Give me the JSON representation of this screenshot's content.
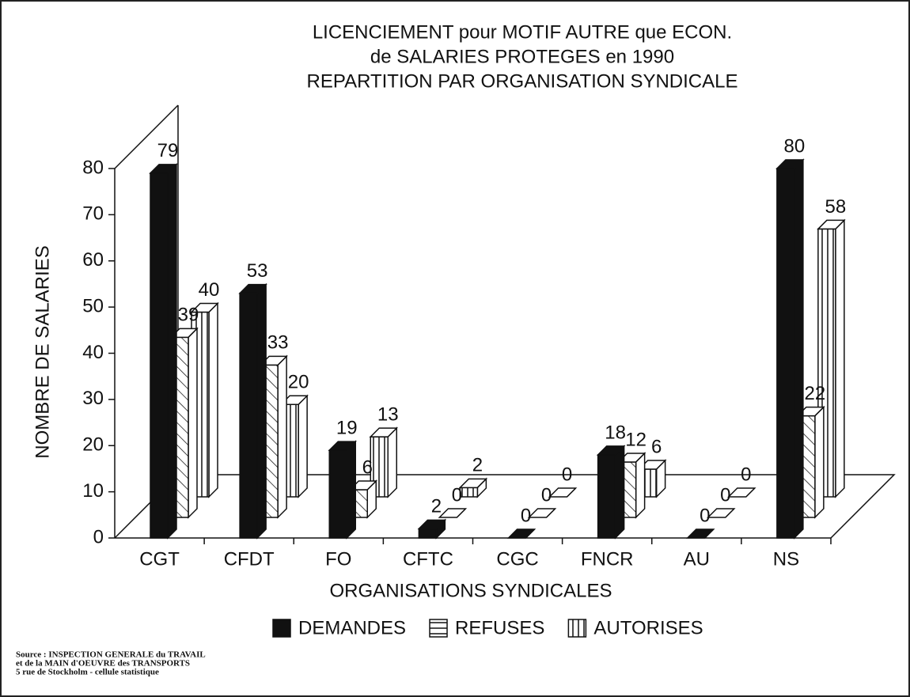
{
  "chart_data": {
    "type": "bar3d",
    "title": [
      "LICENCIEMENT pour MOTIF AUTRE que ECON.",
      "de SALARIES PROTEGES en 1990",
      "REPARTITION PAR ORGANISATION SYNDICALE"
    ],
    "y_label": "NOMBRE   DE  SALARIES",
    "x_label": "ORGANISATIONS  SYNDICALES",
    "categories": [
      "CGT",
      "CFDT",
      "FO",
      "CFTC",
      "CGC",
      "FNCR",
      "AU",
      "NS"
    ],
    "series": [
      {
        "name": "DEMANDES",
        "color": "#111111",
        "values": [
          79,
          53,
          19,
          2,
          0,
          18,
          0,
          80
        ]
      },
      {
        "name": "REFUSES",
        "color": "#ffffff",
        "values": [
          39,
          33,
          6,
          0,
          0,
          12,
          0,
          22
        ]
      },
      {
        "name": "AUTORISES",
        "color": "#ffffff",
        "values": [
          40,
          20,
          13,
          2,
          0,
          6,
          0,
          58
        ]
      }
    ],
    "ylim": [
      0,
      80
    ],
    "yticks": [
      0,
      10,
      20,
      30,
      40,
      50,
      60,
      70,
      80
    ],
    "source": [
      "Source : INSPECTION GENERALE du TRAVAIL",
      "et de la MAIN d'OEUVRE des TRANSPORTS",
      "5 rue de Stockholm - cellule statistique"
    ]
  }
}
